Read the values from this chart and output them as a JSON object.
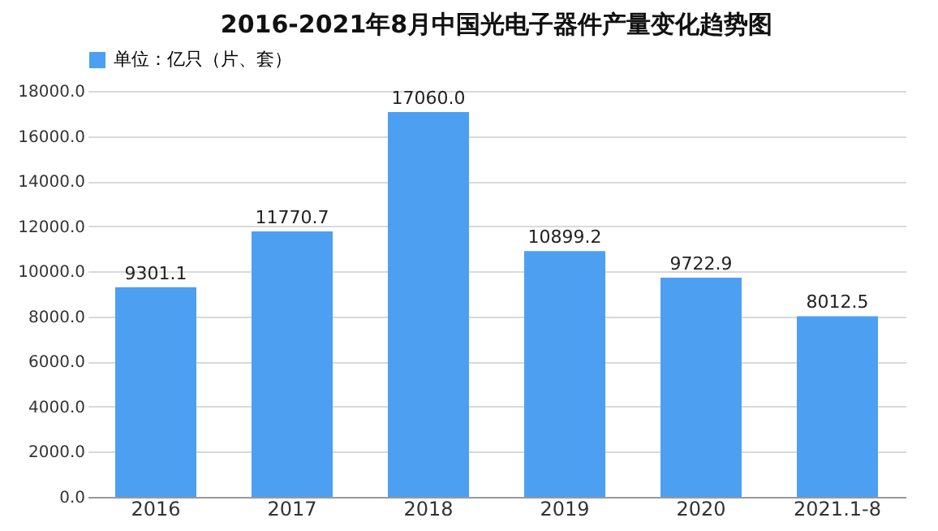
{
  "chart_data": {
    "type": "bar",
    "title": "2016-2021年8月中国光电子器件产量变化趋势图",
    "categories": [
      "2016",
      "2017",
      "2018",
      "2019",
      "2020",
      "2021.1-8"
    ],
    "series": [
      {
        "name": "单位：亿只（片、套）",
        "color": "#4d9ff2",
        "values": [
          9301.1,
          11770.7,
          17060.0,
          10899.2,
          9722.9,
          8012.5
        ],
        "value_labels": [
          "9301.1",
          "11770.7",
          "17060.0",
          "10899.2",
          "9722.9",
          "8012.5"
        ]
      }
    ],
    "ylim": [
      0,
      18000
    ],
    "yticks": [
      {
        "value": 0,
        "label": "0.0"
      },
      {
        "value": 2000,
        "label": "2000.0"
      },
      {
        "value": 4000,
        "label": "4000.0"
      },
      {
        "value": 6000,
        "label": "6000.0"
      },
      {
        "value": 8000,
        "label": "8000.0"
      },
      {
        "value": 10000,
        "label": "10000.0"
      },
      {
        "value": 12000,
        "label": "12000.0"
      },
      {
        "value": 14000,
        "label": "14000.0"
      },
      {
        "value": 16000,
        "label": "16000.0"
      },
      {
        "value": 18000,
        "label": "18000.0"
      }
    ],
    "grid": "y",
    "legend": "top"
  }
}
